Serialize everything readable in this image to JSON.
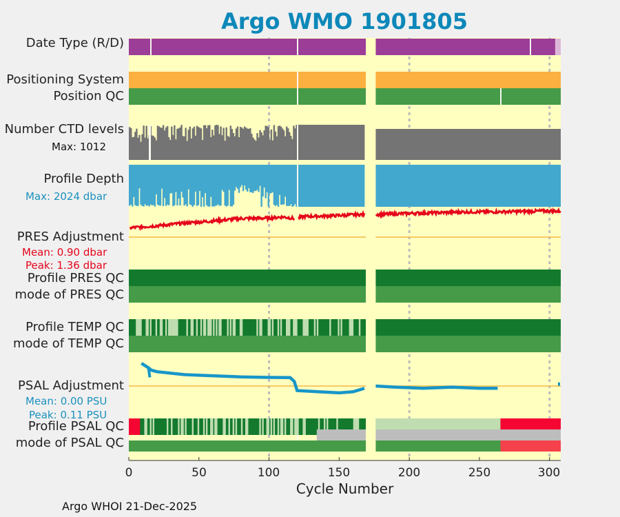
{
  "title": "Argo WMO 1901805",
  "footer": "Argo WHOI 21-Dec-2025",
  "colors": {
    "background": "#ffffc0",
    "date_type": "#9c3d97",
    "positioning": "#fbb040",
    "qc_green": "#459b48",
    "qc_dark_green": "#137a2d",
    "qc_light_green": "#bfddb0",
    "qc_red": "#f50532",
    "qc_red_light": "#f5414c",
    "ctd": "#747474",
    "depth": "#43a8ce",
    "pres": "#e6041a",
    "psal": "#1796c9",
    "reference_line": "#f4b942",
    "gray_band": "#bdbdbd"
  },
  "rows": {
    "date_type": "Date Type (R/D)",
    "positioning": "Positioning System",
    "position_qc": "Position QC",
    "ctd_levels": "Number CTD levels",
    "ctd_max": "Max: 1012",
    "profile_depth": "Profile Depth",
    "depth_max": "Max: 2024 dbar",
    "pres_adjustment": "PRES Adjustment",
    "pres_mean": "Mean: 0.90 dbar",
    "pres_peak": "Peak: 1.36 dbar",
    "profile_pres_qc": "Profile PRES QC",
    "mode_pres_qc": "mode of PRES QC",
    "profile_temp_qc": "Profile TEMP QC",
    "mode_temp_qc": "mode of TEMP QC",
    "psal_adjustment": "PSAL Adjustment",
    "psal_mean": "Mean: 0.00 PSU",
    "psal_peak": "Peak: 0.11 PSU",
    "profile_psal_qc": "Profile PSAL QC",
    "mode_psal_qc": "mode of PSAL QC"
  },
  "chart_data": {
    "type": "bar",
    "xlabel": "Cycle Number",
    "xlim": [
      0,
      308
    ],
    "xticks": [
      "0",
      "50",
      "100",
      "150",
      "200",
      "250",
      "300"
    ],
    "data_gap": [
      169,
      176
    ],
    "max_ctd_levels": 1012,
    "max_profile_depth_dbar": 2024,
    "pres_adjustment_dbar": {
      "mean": 0.9,
      "peak": 1.36,
      "x": [
        1,
        20,
        40,
        60,
        80,
        100,
        110,
        118,
        125,
        140,
        160,
        168,
        180,
        200,
        220,
        240,
        260,
        280,
        300,
        308
      ],
      "y": [
        0.45,
        0.55,
        0.68,
        0.78,
        0.9,
        0.92,
        0.98,
        0.9,
        1.0,
        1.02,
        1.08,
        1.1,
        1.1,
        1.15,
        1.18,
        1.22,
        1.22,
        1.24,
        1.27,
        1.25
      ]
    },
    "psal_adjustment_psu": {
      "mean": 0.0,
      "peak": 0.11,
      "x": [
        9,
        14,
        16,
        20,
        40,
        60,
        80,
        100,
        115,
        118,
        120,
        135,
        150,
        160,
        168,
        176,
        190,
        210,
        230,
        250,
        263,
        306
      ],
      "y": [
        0.1,
        0.08,
        0.07,
        0.063,
        0.05,
        0.045,
        0.04,
        0.038,
        0.037,
        0.02,
        -0.02,
        -0.025,
        -0.03,
        -0.025,
        -0.01,
        0.0,
        -0.005,
        -0.01,
        -0.005,
        -0.01,
        -0.01,
        -0.01
      ]
    },
    "psal_qc_segments": [
      {
        "from": 0,
        "to": 8,
        "qc": "4"
      },
      {
        "from": 8,
        "to": 169,
        "qc": "1"
      },
      {
        "from": 176,
        "to": 265,
        "qc": "3"
      },
      {
        "from": 265,
        "to": 308,
        "qc": "4"
      }
    ]
  }
}
